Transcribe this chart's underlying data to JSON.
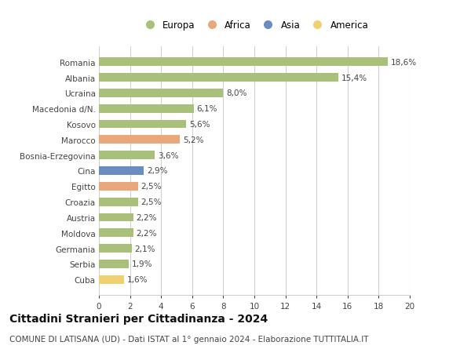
{
  "categories": [
    "Romania",
    "Albania",
    "Ucraina",
    "Macedonia d/N.",
    "Kosovo",
    "Marocco",
    "Bosnia-Erzegovina",
    "Cina",
    "Egitto",
    "Croazia",
    "Austria",
    "Moldova",
    "Germania",
    "Serbia",
    "Cuba"
  ],
  "values": [
    18.6,
    15.4,
    8.0,
    6.1,
    5.6,
    5.2,
    3.6,
    2.9,
    2.5,
    2.5,
    2.2,
    2.2,
    2.1,
    1.9,
    1.6
  ],
  "labels": [
    "18,6%",
    "15,4%",
    "8,0%",
    "6,1%",
    "5,6%",
    "5,2%",
    "3,6%",
    "2,9%",
    "2,5%",
    "2,5%",
    "2,2%",
    "2,2%",
    "2,1%",
    "1,9%",
    "1,6%"
  ],
  "colors": [
    "#a8c07a",
    "#a8c07a",
    "#a8c07a",
    "#a8c07a",
    "#a8c07a",
    "#e8a87c",
    "#a8c07a",
    "#6b8cbf",
    "#e8a87c",
    "#a8c07a",
    "#a8c07a",
    "#a8c07a",
    "#a8c07a",
    "#a8c07a",
    "#f0d070"
  ],
  "legend_labels": [
    "Europa",
    "Africa",
    "Asia",
    "America"
  ],
  "legend_colors": [
    "#a8c07a",
    "#e8a87c",
    "#6b8cbf",
    "#f0d070"
  ],
  "title": "Cittadini Stranieri per Cittadinanza - 2024",
  "subtitle": "COMUNE DI LATISANA (UD) - Dati ISTAT al 1° gennaio 2024 - Elaborazione TUTTITALIA.IT",
  "xlim": [
    0,
    20
  ],
  "xticks": [
    0,
    2,
    4,
    6,
    8,
    10,
    12,
    14,
    16,
    18,
    20
  ],
  "bg_color": "#ffffff",
  "grid_color": "#d0d0d0",
  "title_fontsize": 10,
  "subtitle_fontsize": 7.5,
  "label_fontsize": 7.5,
  "tick_fontsize": 7.5,
  "legend_fontsize": 8.5,
  "bar_height": 0.55
}
